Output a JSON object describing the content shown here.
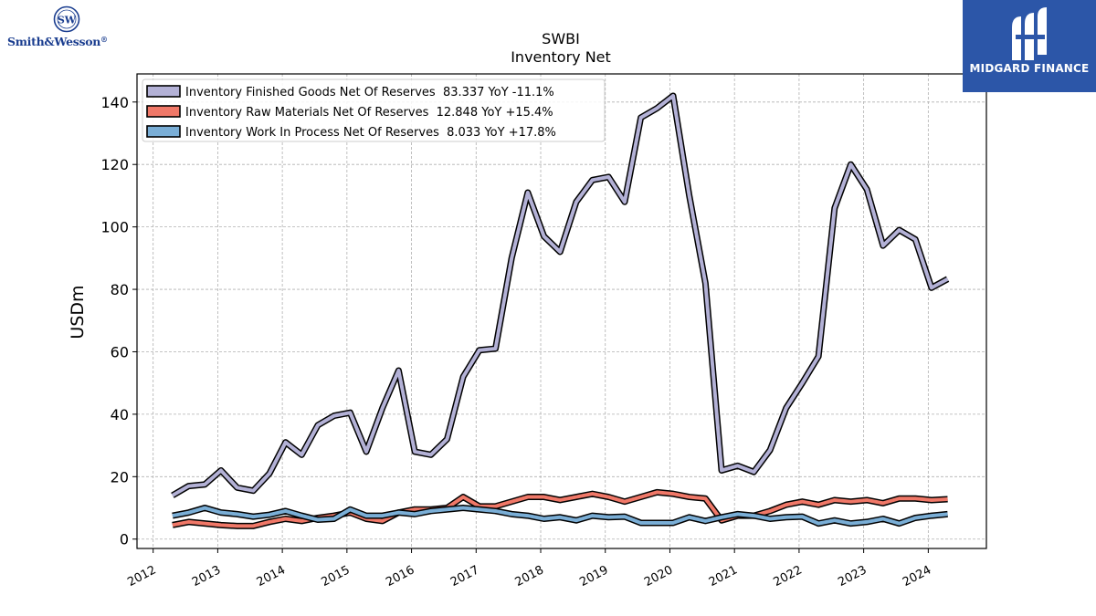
{
  "logos": {
    "left_brand": "Smith&Wesson",
    "left_brand_suffix": "®",
    "right_brand": "MIDGARD FINANCE"
  },
  "chart_data": {
    "type": "line",
    "title": "SWBI",
    "subtitle": "Inventory Net",
    "xlabel": "",
    "ylabel": "USDm",
    "xlim": [
      2011.75,
      2024.9
    ],
    "ylim": [
      -3,
      149
    ],
    "x_ticks": [
      "2012",
      "2013",
      "2014",
      "2015",
      "2016",
      "2017",
      "2018",
      "2019",
      "2020",
      "2021",
      "2022",
      "2023",
      "2024"
    ],
    "y_ticks": [
      0,
      20,
      40,
      60,
      80,
      100,
      120,
      140
    ],
    "grid": true,
    "legend_position": "upper-left",
    "x": [
      2012.3,
      2012.55,
      2012.8,
      2013.05,
      2013.3,
      2013.55,
      2013.8,
      2014.05,
      2014.3,
      2014.55,
      2014.8,
      2015.05,
      2015.3,
      2015.55,
      2015.8,
      2016.05,
      2016.3,
      2016.55,
      2016.8,
      2017.05,
      2017.3,
      2017.55,
      2017.8,
      2018.05,
      2018.3,
      2018.55,
      2018.8,
      2019.05,
      2019.3,
      2019.55,
      2019.8,
      2020.05,
      2020.3,
      2020.55,
      2020.8,
      2021.05,
      2021.3,
      2021.55,
      2021.8,
      2022.05,
      2022.3,
      2022.55,
      2022.8,
      2023.05,
      2023.3,
      2023.55,
      2023.8,
      2024.05,
      2024.3
    ],
    "series": [
      {
        "name": "Inventory Finished Goods Net Of Reserves",
        "legend_label": "Inventory Finished Goods Net Of Reserves  83.337 YoY -11.1%",
        "color": "#b3b1d6",
        "values": [
          14,
          17,
          17.5,
          22,
          16.5,
          15.5,
          21,
          31,
          27,
          36.5,
          39.5,
          40.5,
          28,
          42,
          54,
          28,
          27,
          32,
          52,
          60.5,
          61,
          90,
          111,
          97,
          92,
          108,
          115,
          116,
          108,
          135,
          138,
          142,
          110,
          82,
          22,
          23.5,
          21.5,
          28.5,
          42,
          50,
          58.5,
          106,
          120,
          112,
          94,
          99,
          96,
          80.5,
          83.3
        ]
      },
      {
        "name": "Inventory Raw Materials Net Of Reserves",
        "legend_label": "Inventory Raw Materials Net Of Reserves  12.848 YoY +15.4%",
        "color": "#f07868",
        "values": [
          4.5,
          5.5,
          5,
          4.5,
          4.2,
          4.2,
          5.5,
          6.5,
          5.8,
          6.8,
          7.5,
          8.5,
          6.5,
          5.8,
          8.5,
          9.5,
          9.5,
          10,
          13.5,
          10.5,
          10.5,
          12,
          13.5,
          13.5,
          12.5,
          13.5,
          14.5,
          13.5,
          12,
          13.5,
          15,
          14.5,
          13.5,
          13,
          6,
          7.5,
          7.5,
          9,
          11,
          12,
          11,
          12.5,
          12,
          12.5,
          11.5,
          13,
          13,
          12.5,
          12.8
        ]
      },
      {
        "name": "Inventory Work In Process Net Of Reserves",
        "legend_label": "Inventory Work In Process Net Of Reserves  8.033 YoY +17.8%",
        "color": "#7aaed6",
        "values": [
          7.5,
          8.5,
          10,
          8.5,
          8,
          7.2,
          7.8,
          9,
          7.5,
          6.2,
          6.5,
          9.5,
          7.5,
          7.5,
          8.5,
          8,
          9,
          9.5,
          10,
          9.5,
          9,
          8,
          7.5,
          6.5,
          7,
          6,
          7.5,
          7,
          7.2,
          5.2,
          5.2,
          5.2,
          7,
          5.8,
          7,
          8,
          7.5,
          6.5,
          7,
          7.2,
          5,
          6,
          5,
          5.5,
          6.5,
          5,
          6.8,
          7.5,
          8
        ]
      }
    ]
  }
}
